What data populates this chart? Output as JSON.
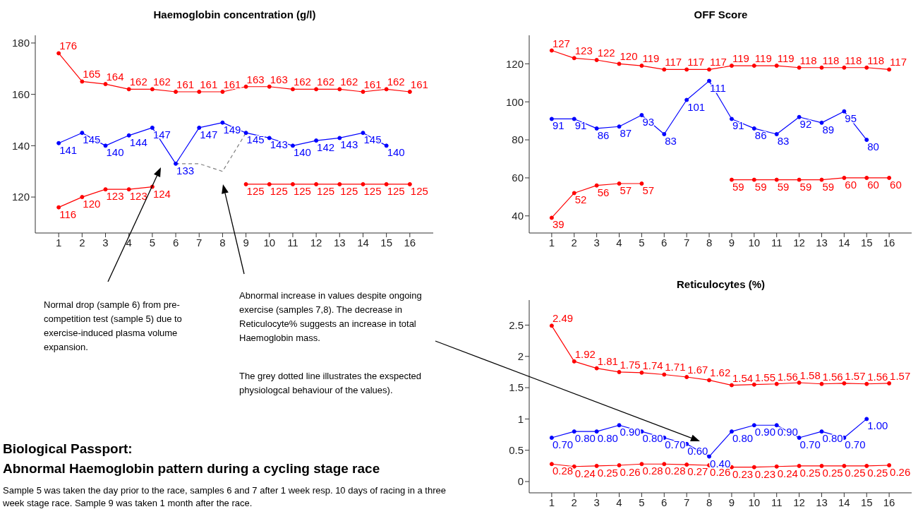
{
  "chart_data": [
    {
      "type": "line",
      "title": "Haemoglobin concentration (g/l)",
      "x": [
        1,
        2,
        3,
        4,
        5,
        6,
        7,
        8,
        9,
        10,
        11,
        12,
        13,
        14,
        15,
        16
      ],
      "xlim": [
        0,
        17
      ],
      "xticks": [
        1,
        2,
        3,
        4,
        5,
        6,
        7,
        8,
        9,
        10,
        11,
        12,
        13,
        14,
        15,
        16
      ],
      "ylim": [
        106,
        183
      ],
      "yticks": [
        120,
        140,
        160,
        180
      ],
      "marker": "circle",
      "line_style": "solid",
      "series": [
        {
          "color": "#ff0000",
          "values": [
            176,
            165,
            164,
            162,
            162,
            161,
            161,
            161,
            163,
            163,
            162,
            162,
            162,
            161,
            162,
            161
          ],
          "value_labels": [
            "176",
            "165",
            "164",
            "162",
            "162",
            "161",
            "161",
            "161",
            "163",
            "163",
            "162",
            "162",
            "162",
            "161",
            "162",
            "161"
          ]
        },
        {
          "color": "#0000ff",
          "values": [
            141,
            145,
            140,
            144,
            147,
            133,
            147,
            149,
            145,
            143,
            140,
            142,
            143,
            145,
            140,
            null
          ],
          "value_labels": [
            "141",
            "145",
            "140",
            "144",
            "147",
            "133",
            "147",
            "149",
            "145",
            "143",
            "140",
            "142",
            "143",
            "145",
            "140",
            null
          ]
        },
        {
          "color": "#ff0000",
          "values": [
            116,
            120,
            123,
            123,
            124,
            null,
            null,
            null,
            125,
            125,
            125,
            125,
            125,
            125,
            125,
            125
          ],
          "value_labels": [
            "116",
            "120",
            "123",
            "123",
            "124",
            null,
            null,
            null,
            "125",
            "125",
            "125",
            "125",
            "125",
            "125",
            "125",
            "125"
          ]
        },
        {
          "color": "#808080",
          "x": [
            6,
            7,
            8,
            9
          ],
          "values": [
            133,
            133,
            130,
            145
          ],
          "line_style": "dashed",
          "marker": "none"
        }
      ],
      "annotations": [
        "Normal drop (sample 6) from pre-competition test (sample 5) due to exercise-induced plasma volume expansion.",
        "Abnormal increase in values despite ongoing exercise (samples 7,8). The decrease in Reticulocyte% suggests an increase in total Haemoglobin mass.",
        "The grey dotted line illustrates the exspected physiologcal behaviour of the values)."
      ]
    },
    {
      "type": "line",
      "title": "OFF Score",
      "x": [
        1,
        2,
        3,
        4,
        5,
        6,
        7,
        8,
        9,
        10,
        11,
        12,
        13,
        14,
        15,
        16
      ],
      "xlim": [
        0,
        17
      ],
      "xticks": [
        1,
        2,
        3,
        4,
        5,
        6,
        7,
        8,
        9,
        10,
        11,
        12,
        13,
        14,
        15,
        16
      ],
      "ylim": [
        31,
        135
      ],
      "yticks": [
        40,
        60,
        80,
        100,
        120
      ],
      "marker": "circle",
      "line_style": "solid",
      "series": [
        {
          "color": "#ff0000",
          "values": [
            127,
            123,
            122,
            120,
            119,
            117,
            117,
            117,
            119,
            119,
            119,
            118,
            118,
            118,
            118,
            117
          ],
          "value_labels": [
            "127",
            "123",
            "122",
            "120",
            "119",
            "117",
            "117",
            "117",
            "119",
            "119",
            "119",
            "118",
            "118",
            "118",
            "118",
            "117"
          ]
        },
        {
          "color": "#0000ff",
          "values": [
            91,
            91,
            86,
            87,
            93,
            83,
            101,
            111,
            91,
            86,
            83,
            92,
            89,
            95,
            80,
            null
          ],
          "value_labels": [
            "91",
            "91",
            "86",
            "87",
            "93",
            "83",
            "101",
            "111",
            "91",
            "86",
            "83",
            "92",
            "89",
            "95",
            "80",
            null
          ]
        },
        {
          "color": "#ff0000",
          "values": [
            39,
            52,
            56,
            57,
            57,
            null,
            null,
            null,
            59,
            59,
            59,
            59,
            59,
            60,
            60,
            60
          ],
          "value_labels": [
            "39",
            "52",
            "56",
            "57",
            "57",
            null,
            null,
            null,
            "59",
            "59",
            "59",
            "59",
            "59",
            "60",
            "60",
            "60"
          ]
        }
      ]
    },
    {
      "type": "line",
      "title": "Reticulocytes (%)",
      "x": [
        1,
        2,
        3,
        4,
        5,
        6,
        7,
        8,
        9,
        10,
        11,
        12,
        13,
        14,
        15,
        16
      ],
      "xlim": [
        0,
        17
      ],
      "xticks": [
        1,
        2,
        3,
        4,
        5,
        6,
        7,
        8,
        9,
        10,
        11,
        12,
        13,
        14,
        15,
        16
      ],
      "ylim": [
        -0.18,
        2.9
      ],
      "yticks": [
        0,
        0.5,
        1,
        1.5,
        2,
        2.5
      ],
      "marker": "circle",
      "line_style": "solid",
      "series": [
        {
          "color": "#ff0000",
          "values": [
            2.49,
            1.92,
            1.81,
            1.75,
            1.74,
            1.71,
            1.67,
            1.62,
            1.54,
            1.55,
            1.56,
            1.58,
            1.56,
            1.57,
            1.56,
            1.57
          ],
          "value_labels": [
            "2.49",
            "1.92",
            "1.81",
            "1.75",
            "1.74",
            "1.71",
            "1.67",
            "1.62",
            "1.54",
            "1.55",
            "1.56",
            "1.58",
            "1.56",
            "1.57",
            "1.56",
            "1.57"
          ]
        },
        {
          "color": "#0000ff",
          "values": [
            0.7,
            0.8,
            0.8,
            0.9,
            0.8,
            0.7,
            0.6,
            0.4,
            0.8,
            0.9,
            0.9,
            0.7,
            0.8,
            0.7,
            1.0,
            null
          ],
          "value_labels": [
            "0.70",
            "0.80",
            "0.80",
            "0.90",
            "0.80",
            "0.70",
            "0.60",
            "0.40",
            "0.80",
            "0.90",
            "0.90",
            "0.70",
            "0.80",
            "0.70",
            "1.00",
            null
          ]
        },
        {
          "color": "#ff0000",
          "values": [
            0.28,
            0.24,
            0.25,
            0.26,
            0.28,
            0.28,
            0.27,
            0.26,
            0.23,
            0.23,
            0.24,
            0.25,
            0.25,
            0.25,
            0.25,
            0.26
          ],
          "value_labels": [
            "0.28",
            "0.24",
            "0.25",
            "0.26",
            "0.28",
            "0.28",
            "0.27",
            "0.26",
            "0.23",
            "0.23",
            "0.24",
            "0.25",
            "0.25",
            "0.25",
            "0.25",
            "0.26"
          ]
        }
      ]
    },
    {
      "type": "other",
      "title": "Biological Passport:",
      "subtitle": "Abnormal Haemoglobin pattern during a cycling stage race",
      "annotations": [
        "Sample 5 was taken the day prior to the race, samples 6 and 7 after 1 week resp. 10 days of racing in a three week stage race. Sample 9 was taken 1 month after the race."
      ]
    }
  ]
}
